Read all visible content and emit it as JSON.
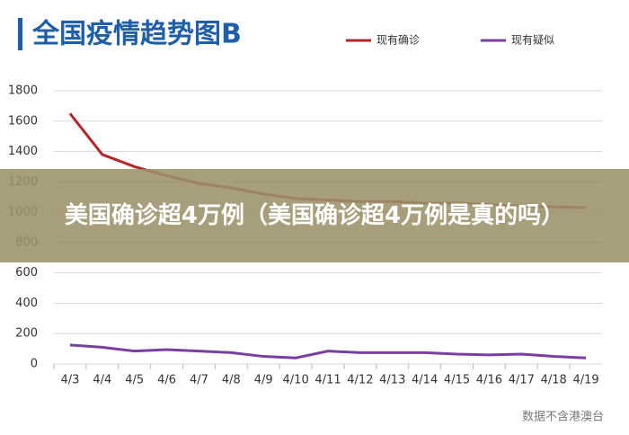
{
  "chart_data": {
    "type": "line",
    "title": "全国疫情趋势图B",
    "categories": [
      "4/3",
      "4/4",
      "4/5",
      "4/6",
      "4/7",
      "4/8",
      "4/9",
      "4/10",
      "4/11",
      "4/12",
      "4/13",
      "4/14",
      "4/15",
      "4/16",
      "4/17",
      "4/18",
      "4/19"
    ],
    "series": [
      {
        "name": "现有确诊",
        "color": "#b5262b",
        "values": [
          1650,
          1380,
          1300,
          1240,
          1190,
          1160,
          1120,
          1090,
          1080,
          1070,
          1070,
          1060,
          1060,
          1050,
          1040,
          1035,
          1030
        ]
      },
      {
        "name": "现有疑似",
        "color": "#7b3fa3",
        "values": [
          125,
          110,
          85,
          95,
          85,
          75,
          50,
          40,
          85,
          75,
          75,
          75,
          65,
          60,
          65,
          50,
          40
        ]
      }
    ],
    "ylim": [
      0,
      1800
    ],
    "yticks": [
      0,
      200,
      400,
      600,
      800,
      1000,
      1200,
      1400,
      1600,
      1800
    ],
    "grid": true,
    "legend": "top-right",
    "source": "数据不含港澳台"
  },
  "banner": {
    "text": "美国确诊超4万例（美国确诊超4万例是真的吗）"
  }
}
